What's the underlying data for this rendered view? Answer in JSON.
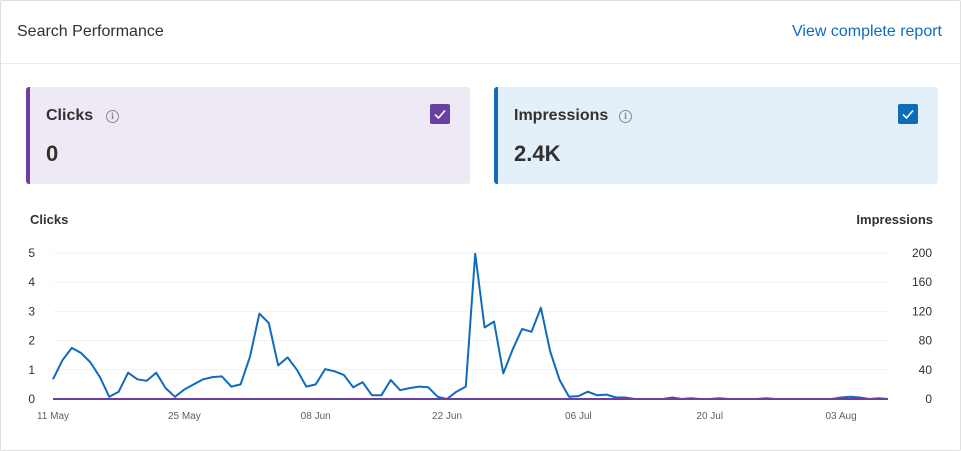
{
  "header": {
    "title": "Search Performance",
    "report_link": "View complete report"
  },
  "metrics": {
    "clicks": {
      "label": "Clicks",
      "value": "0",
      "checked": true,
      "color": "#6b3fa0"
    },
    "impressions": {
      "label": "Impressions",
      "value": "2.4K",
      "checked": true,
      "color": "#0f6cbd"
    }
  },
  "icons": {
    "info": "info-icon",
    "check": "checkmark-icon"
  },
  "chart_data": {
    "type": "line",
    "left_axis_title": "Clicks",
    "right_axis_title": "Impressions",
    "left_ticks": [
      "0",
      "1",
      "2",
      "3",
      "4",
      "5"
    ],
    "right_ticks": [
      "0",
      "40",
      "80",
      "120",
      "160",
      "200"
    ],
    "x_ticks": [
      "11 May",
      "25 May",
      "08 Jun",
      "22 Jun",
      "06 Jul",
      "20 Jul",
      "03 Aug"
    ],
    "ylim_left": [
      0,
      5
    ],
    "ylim_right": [
      0,
      200
    ],
    "start_date": "11 May",
    "series": [
      {
        "name": "Impressions",
        "axis": "right",
        "color": "#0f6cbd",
        "values": [
          27,
          53,
          70,
          63,
          50,
          30,
          3,
          10,
          36,
          27,
          25,
          36,
          15,
          3,
          13,
          20,
          27,
          30,
          31,
          17,
          20,
          58,
          117,
          104,
          46,
          57,
          40,
          17,
          20,
          41,
          38,
          33,
          16,
          23,
          5,
          5,
          26,
          12,
          15,
          17,
          16,
          3,
          0,
          10,
          17,
          199,
          98,
          106,
          35,
          68,
          96,
          92,
          125,
          65,
          26,
          3,
          4,
          10,
          5,
          6,
          2,
          2,
          0,
          0,
          0,
          0,
          2,
          0,
          1,
          0,
          0,
          1,
          0,
          0,
          0,
          0,
          1,
          0,
          0,
          0,
          0,
          0,
          0,
          0,
          2,
          3,
          2,
          0,
          1,
          0
        ]
      },
      {
        "name": "Clicks",
        "axis": "left",
        "color": "#6b3fa0",
        "values": [
          0,
          0,
          0,
          0,
          0,
          0,
          0,
          0,
          0,
          0,
          0,
          0,
          0,
          0,
          0,
          0,
          0,
          0,
          0,
          0,
          0,
          0,
          0,
          0,
          0,
          0,
          0,
          0,
          0,
          0,
          0,
          0,
          0,
          0,
          0,
          0,
          0,
          0,
          0,
          0,
          0,
          0,
          0,
          0,
          0,
          0,
          0,
          0,
          0,
          0,
          0,
          0,
          0,
          0,
          0,
          0,
          0,
          0,
          0,
          0,
          0,
          0,
          0,
          0,
          0,
          0,
          0,
          0,
          0,
          0,
          0,
          0,
          0,
          0,
          0,
          0,
          0,
          0,
          0,
          0,
          0,
          0,
          0,
          0,
          0,
          0,
          0,
          0,
          0,
          0
        ]
      }
    ]
  }
}
